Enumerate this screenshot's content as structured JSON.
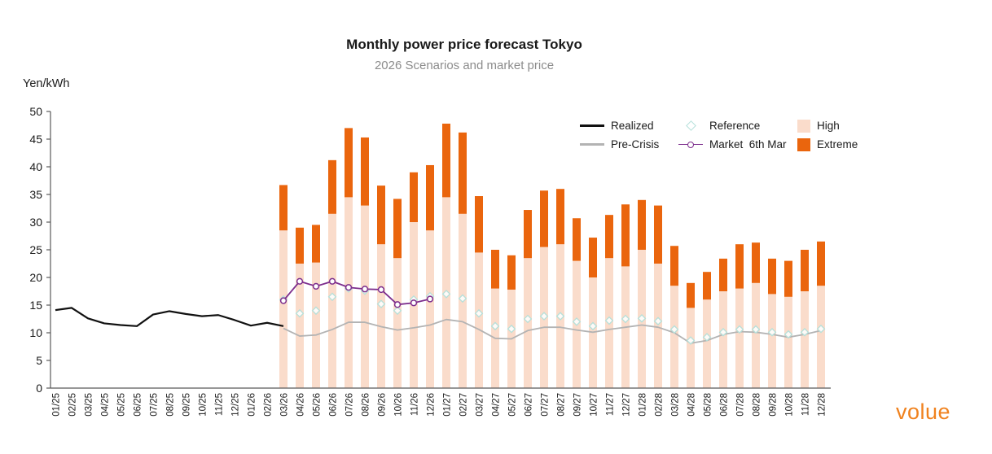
{
  "header": {
    "title": "Monthly power price forecast Tokyo",
    "subtitle": "2026 Scenarios and market price"
  },
  "logo": {
    "text": "volue"
  },
  "colors": {
    "realized": "#111111",
    "pre_crisis": "#b3b3b3",
    "reference": "#b5e0da",
    "market": "#7d2e8d",
    "high": "#fadccb",
    "extreme": "#ea650d",
    "axis": "#595959",
    "text": "#1a1a1a",
    "subtitle": "#8c8c8c",
    "logo": "#f0821e"
  },
  "legend": {
    "rows": [
      [
        {
          "label": "Realized",
          "swatch": "line-black"
        },
        {
          "label": "Reference",
          "swatch": "diamond-teal"
        },
        {
          "label": "High",
          "swatch": "box-pink"
        }
      ],
      [
        {
          "label": "Pre-Crisis",
          "swatch": "line-gray"
        },
        {
          "label": "Market  6th Mar",
          "swatch": "line-circle-purple"
        },
        {
          "label": "Extreme",
          "swatch": "box-orange"
        }
      ]
    ]
  },
  "chart_data": {
    "type": "bar",
    "title": "Monthly power price forecast Tokyo",
    "subtitle": "2026 Scenarios and market price",
    "xlabel": "",
    "ylabel": "Yen/kWh",
    "ylim": [
      0,
      50
    ],
    "y_ticks": [
      0,
      5,
      10,
      15,
      20,
      25,
      30,
      35,
      40,
      45,
      50
    ],
    "grid": false,
    "legend_position": "top-right",
    "stacking": "High bar spans 0 to value; Extreme bar spans High value to Extreme value",
    "categories": [
      "01/25",
      "02/25",
      "03/25",
      "04/25",
      "05/25",
      "06/25",
      "07/25",
      "08/25",
      "09/25",
      "10/25",
      "11/25",
      "12/25",
      "01/26",
      "02/26",
      "03/26",
      "04/26",
      "05/26",
      "06/26",
      "07/26",
      "08/26",
      "09/26",
      "10/26",
      "11/26",
      "12/26",
      "01/27",
      "02/27",
      "03/27",
      "04/27",
      "05/27",
      "06/27",
      "07/27",
      "08/27",
      "09/27",
      "10/27",
      "11/27",
      "12/27",
      "01/28",
      "02/28",
      "03/28",
      "04/28",
      "05/28",
      "06/28",
      "07/28",
      "08/28",
      "09/28",
      "10/28",
      "11/28",
      "12/28"
    ],
    "series": [
      {
        "name": "Realized",
        "kind": "line",
        "start_index": 0,
        "values": [
          14.1,
          14.5,
          12.6,
          11.7,
          11.4,
          11.2,
          13.3,
          13.9,
          13.4,
          13.0,
          13.2,
          12.3,
          11.3,
          11.8,
          11.2
        ]
      },
      {
        "name": "Pre-Crisis",
        "kind": "line",
        "start_index": 14,
        "values": [
          10.8,
          9.4,
          9.6,
          10.6,
          11.9,
          11.9,
          11.1,
          10.5,
          10.9,
          11.4,
          12.4,
          12.0,
          10.6,
          9.0,
          8.9,
          10.4,
          11.0,
          11.0,
          10.5,
          10.1,
          10.6,
          11.0,
          11.4,
          11.0,
          10.0,
          8.1,
          8.6,
          9.7,
          10.2,
          10.1,
          9.7,
          9.2,
          9.7,
          10.4
        ]
      },
      {
        "name": "Reference",
        "kind": "scatter-diamond",
        "start_index": 14,
        "values": [
          16.0,
          13.5,
          14.0,
          16.5,
          18.0,
          17.6,
          15.2,
          14.0,
          16.0,
          16.6,
          17.0,
          16.2,
          13.5,
          11.2,
          10.7,
          12.5,
          13.0,
          13.0,
          12.0,
          11.2,
          12.2,
          12.5,
          12.6,
          12.1,
          10.6,
          8.6,
          9.2,
          10.1,
          10.6,
          10.6,
          10.1,
          9.7,
          10.1,
          10.7
        ]
      },
      {
        "name": "Market 6th Mar",
        "kind": "line-circle",
        "start_index": 14,
        "values": [
          15.8,
          19.3,
          18.4,
          19.3,
          18.2,
          17.9,
          17.8,
          15.1,
          15.4,
          16.1
        ]
      },
      {
        "name": "High",
        "kind": "bar-stacked-bottom",
        "start_index": 14,
        "values": [
          28.5,
          22.5,
          22.7,
          31.5,
          34.5,
          33.0,
          26.0,
          23.5,
          30.0,
          28.5,
          34.5,
          31.5,
          24.5,
          18.0,
          17.8,
          23.5,
          25.5,
          26.0,
          23.0,
          20.0,
          23.5,
          22.0,
          25.0,
          22.5,
          18.5,
          14.5,
          16.0,
          17.5,
          18.0,
          19.0,
          17.0,
          16.5,
          17.5,
          18.5
        ]
      },
      {
        "name": "Extreme",
        "kind": "bar-stacked-top",
        "start_index": 14,
        "values": [
          36.7,
          29.0,
          29.5,
          41.2,
          47.0,
          45.3,
          36.6,
          34.2,
          39.0,
          40.3,
          47.8,
          46.2,
          34.7,
          25.0,
          24.0,
          32.2,
          35.7,
          36.0,
          30.7,
          27.2,
          31.3,
          33.2,
          34.0,
          33.0,
          25.7,
          19.0,
          21.0,
          23.4,
          26.0,
          26.3,
          23.4,
          23.0,
          25.0,
          26.5
        ]
      }
    ]
  }
}
